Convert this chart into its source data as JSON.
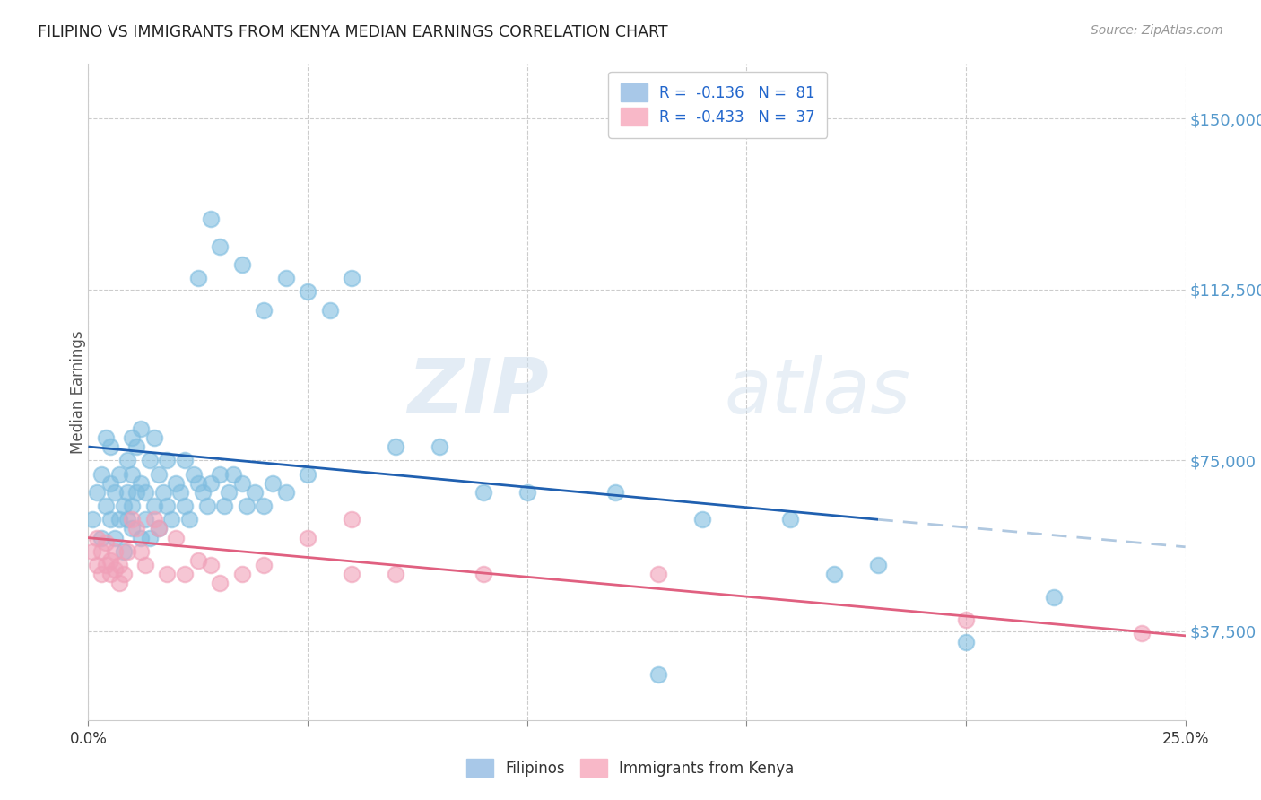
{
  "title": "FILIPINO VS IMMIGRANTS FROM KENYA MEDIAN EARNINGS CORRELATION CHART",
  "source": "Source: ZipAtlas.com",
  "ylabel": "Median Earnings",
  "y_ticks": [
    37500,
    75000,
    112500,
    150000
  ],
  "y_tick_labels": [
    "$37,500",
    "$75,000",
    "$112,500",
    "$150,000"
  ],
  "x_range": [
    0.0,
    0.25
  ],
  "y_range": [
    18000,
    162000
  ],
  "filipino_color": "#7fbde0",
  "kenya_color": "#f0a0b8",
  "trend_filipino_color": "#2060b0",
  "trend_kenya_color": "#e06080",
  "trend_filipino_dashed_color": "#b0c8e0",
  "watermark_zip": "ZIP",
  "watermark_atlas": "atlas",
  "filipino_x": [
    0.001,
    0.002,
    0.003,
    0.003,
    0.004,
    0.004,
    0.005,
    0.005,
    0.005,
    0.006,
    0.006,
    0.007,
    0.007,
    0.008,
    0.008,
    0.009,
    0.009,
    0.009,
    0.01,
    0.01,
    0.01,
    0.01,
    0.011,
    0.011,
    0.012,
    0.012,
    0.012,
    0.013,
    0.013,
    0.014,
    0.014,
    0.015,
    0.015,
    0.016,
    0.016,
    0.017,
    0.018,
    0.018,
    0.019,
    0.02,
    0.021,
    0.022,
    0.022,
    0.023,
    0.024,
    0.025,
    0.026,
    0.027,
    0.028,
    0.03,
    0.031,
    0.032,
    0.033,
    0.035,
    0.036,
    0.038,
    0.04,
    0.042,
    0.045,
    0.05,
    0.025,
    0.028,
    0.03,
    0.035,
    0.04,
    0.045,
    0.05,
    0.055,
    0.06,
    0.07,
    0.08,
    0.09,
    0.1,
    0.12,
    0.14,
    0.16,
    0.2,
    0.22,
    0.13,
    0.17,
    0.18
  ],
  "filipino_y": [
    62000,
    68000,
    72000,
    58000,
    80000,
    65000,
    78000,
    62000,
    70000,
    68000,
    58000,
    72000,
    62000,
    65000,
    55000,
    75000,
    62000,
    68000,
    60000,
    72000,
    80000,
    65000,
    68000,
    78000,
    58000,
    70000,
    82000,
    62000,
    68000,
    75000,
    58000,
    65000,
    80000,
    60000,
    72000,
    68000,
    65000,
    75000,
    62000,
    70000,
    68000,
    65000,
    75000,
    62000,
    72000,
    70000,
    68000,
    65000,
    70000,
    72000,
    65000,
    68000,
    72000,
    70000,
    65000,
    68000,
    65000,
    70000,
    68000,
    72000,
    115000,
    128000,
    122000,
    118000,
    108000,
    115000,
    112000,
    108000,
    115000,
    78000,
    78000,
    68000,
    68000,
    68000,
    62000,
    62000,
    35000,
    45000,
    28000,
    50000,
    52000
  ],
  "kenya_x": [
    0.001,
    0.002,
    0.002,
    0.003,
    0.003,
    0.004,
    0.004,
    0.005,
    0.005,
    0.006,
    0.006,
    0.007,
    0.007,
    0.008,
    0.009,
    0.01,
    0.011,
    0.012,
    0.013,
    0.015,
    0.016,
    0.018,
    0.02,
    0.022,
    0.025,
    0.028,
    0.03,
    0.035,
    0.04,
    0.05,
    0.06,
    0.06,
    0.07,
    0.09,
    0.13,
    0.2,
    0.24
  ],
  "kenya_y": [
    55000,
    52000,
    58000,
    50000,
    55000,
    52000,
    57000,
    50000,
    53000,
    51000,
    55000,
    52000,
    48000,
    50000,
    55000,
    62000,
    60000,
    55000,
    52000,
    62000,
    60000,
    50000,
    58000,
    50000,
    53000,
    52000,
    48000,
    50000,
    52000,
    58000,
    50000,
    62000,
    50000,
    50000,
    50000,
    40000,
    37000
  ],
  "trend_fil_x0": 0.0,
  "trend_fil_y0": 78000,
  "trend_fil_x1": 0.18,
  "trend_fil_y1": 62000,
  "trend_fil_dash_x0": 0.18,
  "trend_fil_dash_y0": 62000,
  "trend_fil_dash_x1": 0.25,
  "trend_fil_dash_y1": 56000,
  "trend_ken_x0": 0.0,
  "trend_ken_y0": 58000,
  "trend_ken_x1": 0.25,
  "trend_ken_y1": 36500
}
